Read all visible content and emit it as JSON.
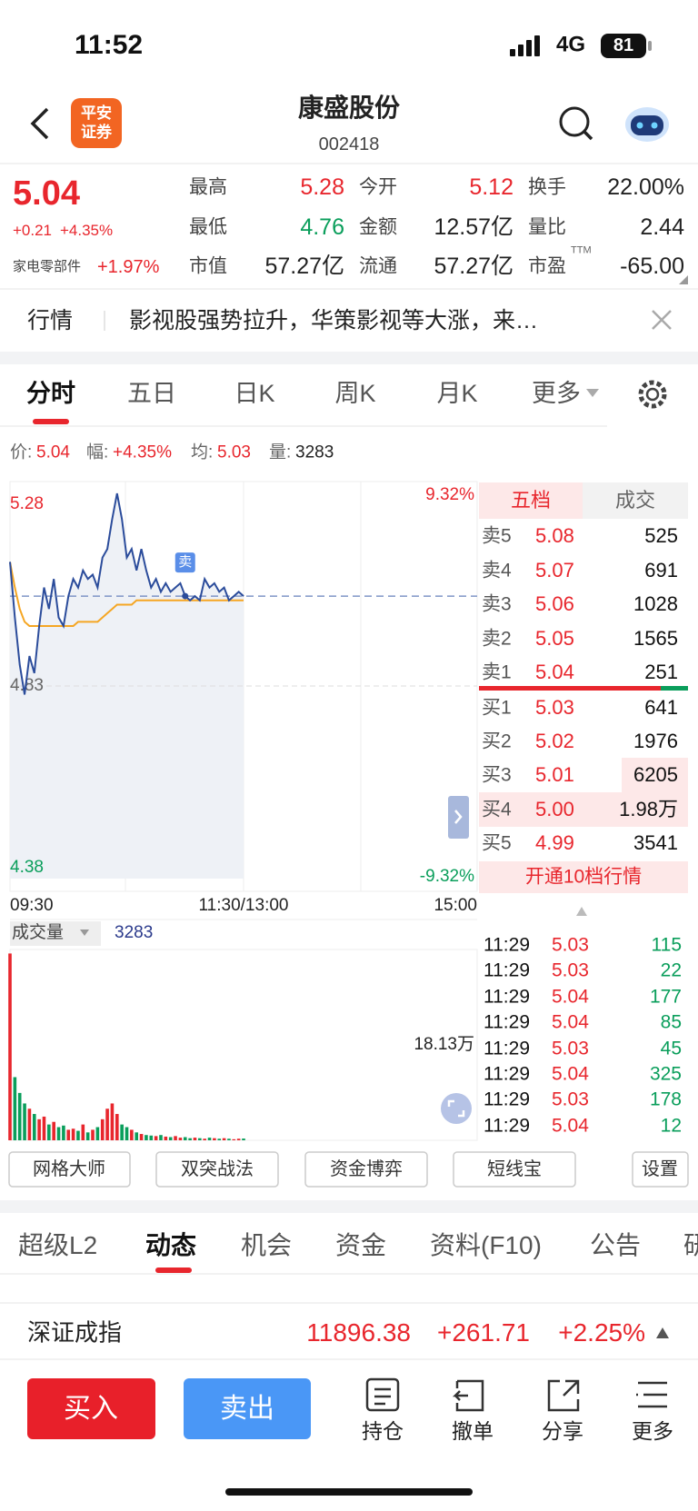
{
  "status_bar": {
    "time": "11:52",
    "network": "4G",
    "battery": "81"
  },
  "header": {
    "logo_top": "平安",
    "logo_bottom": "证券",
    "title": "康盛股份",
    "code": "002418"
  },
  "quote": {
    "price": "5.04",
    "change": "+0.21",
    "change_pct": "+4.35%",
    "sector": "家电零部件",
    "sector_pct": "+1.97%",
    "ttm": "TTM",
    "stats": [
      [
        {
          "label": "最高",
          "value": "5.28",
          "color": "#e8262d"
        },
        {
          "label": "今开",
          "value": "5.12",
          "color": "#e8262d"
        },
        {
          "label": "换手",
          "value": "22.00%",
          "color": "#222"
        }
      ],
      [
        {
          "label": "最低",
          "value": "4.76",
          "color": "#0a9e5b"
        },
        {
          "label": "金额",
          "value": "12.57亿",
          "color": "#222"
        },
        {
          "label": "量比",
          "value": "2.44",
          "color": "#222"
        }
      ],
      [
        {
          "label": "市值",
          "value": "57.27亿",
          "color": "#222"
        },
        {
          "label": "流通",
          "value": "57.27亿",
          "color": "#222"
        },
        {
          "label": "市盈",
          "value": "-65.00",
          "color": "#222"
        }
      ]
    ]
  },
  "news": {
    "tag": "行情",
    "text": "影视股强势拉升，华策影视等大涨，来…"
  },
  "tabs": [
    "分时",
    "五日",
    "日K",
    "周K",
    "月K",
    "更多"
  ],
  "info_bar": [
    {
      "label": "价:",
      "value": "5.04"
    },
    {
      "label": "幅:",
      "value": "+4.35%"
    },
    {
      "label": "均:",
      "value": "5.03"
    },
    {
      "label": "量:",
      "value": "3283"
    }
  ],
  "chart": {
    "ylim": [
      4.38,
      5.28
    ],
    "yticks": [
      4.38,
      4.83,
      5.28
    ],
    "pct_top": "9.32%",
    "pct_bottom": "-9.32%",
    "times": [
      "09:30",
      "11:30/13:00",
      "15:00"
    ],
    "sell_marker": "卖",
    "price_line": [
      5.12,
      4.99,
      4.88,
      4.81,
      4.9,
      4.86,
      4.97,
      5.06,
      5.01,
      5.08,
      4.99,
      4.97,
      5.04,
      5.08,
      5.06,
      5.1,
      5.08,
      5.09,
      5.06,
      5.13,
      5.15,
      5.22,
      5.28,
      5.22,
      5.13,
      5.15,
      5.1,
      5.15,
      5.1,
      5.06,
      5.08,
      5.05,
      5.07,
      5.05,
      5.06,
      5.07,
      5.04,
      5.03,
      5.04,
      5.03,
      5.08,
      5.06,
      5.07,
      5.05,
      5.06,
      5.03,
      5.04,
      5.05,
      5.04
    ],
    "avg_line": [
      5.12,
      5.06,
      5.01,
      4.98,
      4.97,
      4.97,
      4.97,
      4.97,
      4.97,
      4.97,
      4.97,
      4.97,
      4.97,
      4.97,
      4.98,
      4.98,
      4.98,
      4.98,
      4.98,
      4.99,
      5.0,
      5.01,
      5.02,
      5.02,
      5.02,
      5.02,
      5.03,
      5.03,
      5.03,
      5.03,
      5.03,
      5.03,
      5.03,
      5.03,
      5.03,
      5.03,
      5.03,
      5.03,
      5.03,
      5.03,
      5.03,
      5.03,
      5.03,
      5.03,
      5.03,
      5.03,
      5.03,
      5.03,
      5.03
    ],
    "volume_label": "成交量",
    "volume_value": "3283",
    "volume_ylim": [
      0,
      362600
    ],
    "volume_ticks": [
      {
        "value": 181300,
        "label": "18.13万"
      }
    ],
    "volumes": [
      355000,
      120000,
      90000,
      70000,
      60000,
      50000,
      40000,
      45000,
      30000,
      35000,
      25000,
      28000,
      20000,
      22000,
      18000,
      30000,
      15000,
      20000,
      25000,
      40000,
      60000,
      70000,
      50000,
      30000,
      25000,
      20000,
      15000,
      12000,
      10000,
      9000,
      8000,
      10000,
      7000,
      6000,
      8000,
      5000,
      6000,
      4000,
      5000,
      4000,
      3000,
      5000,
      4000,
      3000,
      4000,
      3000,
      2000,
      3000,
      3283
    ]
  },
  "order_book": {
    "tabs": [
      "五档",
      "成交"
    ],
    "rows": [
      {
        "label": "卖5",
        "price": "5.08",
        "volume": "525"
      },
      {
        "label": "卖4",
        "price": "5.07",
        "volume": "691"
      },
      {
        "label": "卖3",
        "price": "5.06",
        "volume": "1028"
      },
      {
        "label": "卖2",
        "price": "5.05",
        "volume": "1565"
      },
      {
        "label": "卖1",
        "price": "5.04",
        "volume": "251"
      },
      {
        "label": "买1",
        "price": "5.03",
        "volume": "641"
      },
      {
        "label": "买2",
        "price": "5.02",
        "volume": "1976"
      },
      {
        "label": "买3",
        "price": "5.01",
        "volume": "6205"
      },
      {
        "label": "买4",
        "price": "5.00",
        "volume": "1.98万"
      },
      {
        "label": "买5",
        "price": "4.99",
        "volume": "3541"
      }
    ],
    "upgrade": "开通10档行情"
  },
  "trades": [
    {
      "time": "11:29",
      "price": "5.03",
      "volume": "115"
    },
    {
      "time": "11:29",
      "price": "5.03",
      "volume": "22"
    },
    {
      "time": "11:29",
      "price": "5.04",
      "volume": "177"
    },
    {
      "time": "11:29",
      "price": "5.04",
      "volume": "85"
    },
    {
      "time": "11:29",
      "price": "5.03",
      "volume": "45"
    },
    {
      "time": "11:29",
      "price": "5.04",
      "volume": "325"
    },
    {
      "time": "11:29",
      "price": "5.03",
      "volume": "178"
    },
    {
      "time": "11:29",
      "price": "5.04",
      "volume": "12"
    }
  ],
  "tools": [
    "网格大师",
    "双突战法",
    "资金博弈",
    "短线宝",
    "设置"
  ],
  "bottom_tabs": [
    "超级L2",
    "动态",
    "机会",
    "资金",
    "资料(F10)",
    "公告",
    "研"
  ],
  "index": {
    "name": "深证成指",
    "value": "11896.38",
    "change": "+261.71",
    "pct": "+2.25%"
  },
  "actions": {
    "buy": "买入",
    "sell": "卖出",
    "items": [
      "持仓",
      "撤单",
      "分享",
      "更多"
    ]
  }
}
